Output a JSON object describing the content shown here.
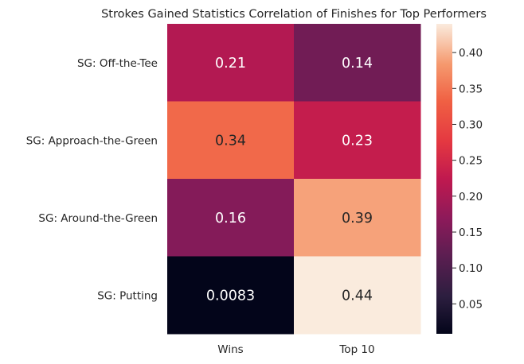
{
  "chart_data": {
    "type": "heatmap",
    "title": "Strokes Gained Statistics Correlation of Finishes for Top Performers",
    "rows": [
      "SG: Off-the-Tee",
      "SG: Approach-the-Green",
      "SG: Around-the-Green",
      "SG: Putting"
    ],
    "columns": [
      "Wins",
      "Top 10"
    ],
    "values": [
      [
        0.21,
        0.14
      ],
      [
        0.34,
        0.23
      ],
      [
        0.16,
        0.39
      ],
      [
        0.0083,
        0.44
      ]
    ],
    "value_labels": [
      [
        "0.21",
        "0.14"
      ],
      [
        "0.34",
        "0.23"
      ],
      [
        "0.16",
        "0.39"
      ],
      [
        "0.0083",
        "0.44"
      ]
    ],
    "colormap": "rocket",
    "colorbar": {
      "range": [
        0.0083,
        0.44
      ],
      "ticks": [
        0.05,
        0.1,
        0.15,
        0.2,
        0.25,
        0.3,
        0.35,
        0.4
      ],
      "tick_labels": [
        "0.05",
        "0.10",
        "0.15",
        "0.20",
        "0.25",
        "0.30",
        "0.35",
        "0.40"
      ]
    },
    "grid": false
  }
}
